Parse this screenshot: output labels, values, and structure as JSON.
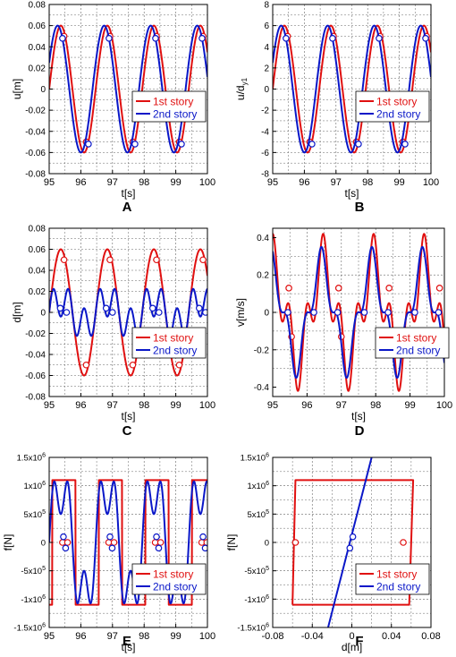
{
  "colors": {
    "red": "#e01010",
    "blue": "#0a17c8",
    "grid": "#666666",
    "axis": "#000000"
  },
  "legend": {
    "entries": [
      "1st story",
      "2nd story"
    ],
    "placement": "bottom-right"
  },
  "chart_data": [
    {
      "id": "A",
      "panel_label": "A",
      "type": "line",
      "xlabel": "t[s]",
      "ylabel": "u[m]",
      "xlim": [
        95,
        100
      ],
      "ylim": [
        -0.08,
        0.08
      ],
      "xticks": [
        "95",
        "96",
        "97",
        "98",
        "99",
        "100"
      ],
      "yticks": [
        "-0.08",
        "-0.06",
        "-0.04",
        "-0.02",
        "0",
        "0.02",
        "0.04",
        "0.06",
        "0.08"
      ],
      "grid": true,
      "series": [
        {
          "name": "1st story",
          "color": "#e01010",
          "model": {
            "kind": "sine",
            "amp": 0.06,
            "period": 1.47,
            "phase": 95.0
          },
          "markers": [
            [
              95.47,
              0.05
            ],
            [
              96.17,
              -0.05
            ],
            [
              96.92,
              0.05
            ],
            [
              97.64,
              -0.05
            ],
            [
              98.39,
              0.05
            ],
            [
              99.11,
              -0.05
            ],
            [
              99.86,
              0.05
            ]
          ]
        },
        {
          "name": "2nd story",
          "color": "#0a17c8",
          "model": {
            "kind": "sine",
            "amp": 0.06,
            "period": 1.47,
            "phase": 94.9
          },
          "markers": [
            [
              95.42,
              0.048
            ],
            [
              96.24,
              -0.052
            ],
            [
              96.89,
              0.048
            ],
            [
              97.71,
              -0.052
            ],
            [
              98.36,
              0.048
            ],
            [
              99.18,
              -0.052
            ],
            [
              99.83,
              0.048
            ]
          ]
        }
      ]
    },
    {
      "id": "B",
      "panel_label": "B",
      "type": "line",
      "xlabel": "t[s]",
      "ylabel": "u/d",
      "ylabel_sub": "y1",
      "xlim": [
        95,
        100
      ],
      "ylim": [
        -8,
        8
      ],
      "xticks": [
        "95",
        "96",
        "97",
        "98",
        "99",
        "100"
      ],
      "yticks": [
        "-8",
        "-6",
        "-4",
        "-2",
        "0",
        "2",
        "4",
        "6",
        "8"
      ],
      "grid": true,
      "series": [
        {
          "name": "1st story",
          "color": "#e01010",
          "model": {
            "kind": "sine",
            "amp": 6.0,
            "period": 1.47,
            "phase": 95.0
          },
          "markers": [
            [
              95.47,
              5.0
            ],
            [
              96.17,
              -5.0
            ],
            [
              96.92,
              5.0
            ],
            [
              97.64,
              -5.0
            ],
            [
              98.39,
              5.0
            ],
            [
              99.11,
              -5.0
            ],
            [
              99.86,
              5.0
            ]
          ]
        },
        {
          "name": "2nd story",
          "color": "#0a17c8",
          "model": {
            "kind": "sine",
            "amp": 6.0,
            "period": 1.47,
            "phase": 94.9
          },
          "markers": [
            [
              95.42,
              4.8
            ],
            [
              96.24,
              -5.2
            ],
            [
              96.89,
              4.8
            ],
            [
              97.71,
              -5.2
            ],
            [
              98.36,
              4.8
            ],
            [
              99.18,
              -5.2
            ],
            [
              99.83,
              4.8
            ]
          ]
        }
      ]
    },
    {
      "id": "C",
      "panel_label": "C",
      "type": "line",
      "xlabel": "t[s]",
      "ylabel": "d[m]",
      "xlim": [
        95,
        100
      ],
      "ylim": [
        -0.08,
        0.08
      ],
      "xticks": [
        "95",
        "96",
        "97",
        "98",
        "99",
        "100"
      ],
      "yticks": [
        "-0.08",
        "-0.06",
        "-0.04",
        "-0.02",
        "0",
        "0.02",
        "0.04",
        "0.06",
        "0.08"
      ],
      "grid": true,
      "series": [
        {
          "name": "1st story",
          "color": "#e01010",
          "model": {
            "kind": "sine",
            "amp": 0.06,
            "period": 1.47,
            "phase": 95.0
          },
          "markers": [
            [
              95.47,
              0.05
            ],
            [
              96.17,
              -0.05
            ],
            [
              96.92,
              0.05
            ],
            [
              97.64,
              -0.05
            ],
            [
              98.39,
              0.05
            ],
            [
              99.11,
              -0.05
            ],
            [
              99.86,
              0.05
            ]
          ]
        },
        {
          "name": "2nd story",
          "color": "#0a17c8",
          "model": {
            "kind": "wiggle",
            "a1": 0.012,
            "a2": 0.016,
            "period": 1.47,
            "phase": 95.0
          },
          "markers": [
            [
              95.35,
              0.004
            ],
            [
              95.55,
              0.0
            ],
            [
              96.8,
              0.004
            ],
            [
              97.0,
              0.0
            ],
            [
              98.27,
              0.004
            ],
            [
              98.47,
              0.0
            ],
            [
              99.74,
              0.004
            ],
            [
              99.94,
              0.0
            ]
          ]
        }
      ]
    },
    {
      "id": "D",
      "panel_label": "D",
      "type": "line",
      "xlabel": "t[s]",
      "ylabel": "v[m/s]",
      "xlim": [
        95,
        100
      ],
      "ylim": [
        -0.45,
        0.45
      ],
      "xticks": [
        "95",
        "96",
        "97",
        "98",
        "99",
        "100"
      ],
      "yticks": [
        "-0.4",
        "-0.2",
        "0",
        "0.2",
        "0.4"
      ],
      "grid": true,
      "series": [
        {
          "name": "1st story",
          "color": "#e01010",
          "model": {
            "kind": "vel",
            "a1": 0.26,
            "a2": 0.16,
            "period": 1.47,
            "phase": 95.0
          },
          "markers": [
            [
              95.47,
              0.13
            ],
            [
              95.55,
              -0.13
            ],
            [
              96.92,
              0.13
            ],
            [
              97.0,
              -0.13
            ],
            [
              98.39,
              0.13
            ],
            [
              98.47,
              -0.13
            ],
            [
              99.86,
              0.13
            ],
            [
              99.94,
              -0.13
            ]
          ]
        },
        {
          "name": "2nd story",
          "color": "#0a17c8",
          "model": {
            "kind": "vel",
            "a1": 0.26,
            "a2": 0.09,
            "period": 1.47,
            "phase": 94.95
          },
          "markers": [
            [
              95.44,
              0.0
            ],
            [
              96.2,
              0.0
            ],
            [
              96.89,
              0.0
            ],
            [
              97.67,
              0.0
            ],
            [
              98.36,
              0.0
            ],
            [
              99.14,
              0.0
            ],
            [
              99.83,
              0.0
            ]
          ]
        }
      ]
    },
    {
      "id": "E",
      "panel_label": "E",
      "type": "line",
      "xlabel": "t[s]",
      "ylabel": "f[N]",
      "xlim": [
        95,
        100
      ],
      "ylim": [
        -1500000,
        1500000
      ],
      "xticks": [
        "95",
        "96",
        "97",
        "98",
        "99",
        "100"
      ],
      "ytick_values": [
        -1500000,
        -1000000,
        -500000,
        0,
        500000,
        1000000,
        1500000
      ],
      "yticks_sci": [
        {
          "m": "-1.5x10",
          "e": "6"
        },
        {
          "m": "-1x10",
          "e": "6"
        },
        {
          "m": "-5x10",
          "e": "5"
        },
        {
          "m": "0",
          "e": ""
        },
        {
          "m": "5x10",
          "e": "5"
        },
        {
          "m": "1x10",
          "e": "6"
        },
        {
          "m": "1.5x10",
          "e": "6"
        }
      ],
      "grid": true,
      "series": [
        {
          "name": "1st story",
          "color": "#e01010",
          "model": {
            "kind": "square",
            "amp": 1100000,
            "period": 1.47,
            "phase": 95.1
          },
          "markers": [
            [
              95.42,
              0
            ],
            [
              95.58,
              0
            ],
            [
              96.88,
              0
            ],
            [
              97.05,
              0
            ],
            [
              98.35,
              0
            ],
            [
              98.52,
              0
            ],
            [
              99.82,
              0
            ],
            [
              99.98,
              0
            ]
          ]
        },
        {
          "name": "2nd story",
          "color": "#0a17c8",
          "model": {
            "kind": "force",
            "a1": 1000000,
            "a2": 500000,
            "period": 1.47,
            "phase": 95.0
          },
          "markers": [
            [
              95.45,
              100000
            ],
            [
              95.52,
              -100000
            ],
            [
              96.92,
              100000
            ],
            [
              96.99,
              -100000
            ],
            [
              98.39,
              100000
            ],
            [
              98.46,
              -100000
            ],
            [
              99.86,
              100000
            ],
            [
              99.93,
              -100000
            ]
          ]
        }
      ]
    },
    {
      "id": "F",
      "panel_label": "F",
      "type": "line",
      "xlabel": "d[m]",
      "ylabel": "f[N]",
      "xlim": [
        -0.08,
        0.08
      ],
      "ylim": [
        -1500000,
        1500000
      ],
      "xticks": [
        "-0.08",
        "-0.04",
        "0",
        "0.04",
        "0.08"
      ],
      "ytick_values": [
        -1500000,
        -1000000,
        -500000,
        0,
        500000,
        1000000,
        1500000
      ],
      "yticks_sci": [
        {
          "m": "-1.5x10",
          "e": "6"
        },
        {
          "m": "-1x10",
          "e": "6"
        },
        {
          "m": "-5x10",
          "e": "5"
        },
        {
          "m": "0",
          "e": ""
        },
        {
          "m": "5x10",
          "e": "5"
        },
        {
          "m": "1x10",
          "e": "6"
        },
        {
          "m": "1.5x10",
          "e": "6"
        }
      ],
      "grid": true,
      "series": [
        {
          "name": "1st story",
          "color": "#e01010",
          "points": [
            [
              -0.06,
              -1100000
            ],
            [
              0.058,
              -1100000
            ],
            [
              0.062,
              1100000
            ],
            [
              -0.057,
              1100000
            ],
            [
              -0.06,
              -1100000
            ]
          ],
          "markers": [
            [
              -0.057,
              0
            ],
            [
              0.052,
              0
            ]
          ]
        },
        {
          "name": "2nd story",
          "color": "#0a17c8",
          "points": [
            [
              -0.024,
              -1500000
            ],
            [
              0.02,
              1500000
            ]
          ],
          "markers": [
            [
              -0.002,
              -100000
            ],
            [
              0.001,
              100000
            ]
          ]
        }
      ]
    }
  ]
}
